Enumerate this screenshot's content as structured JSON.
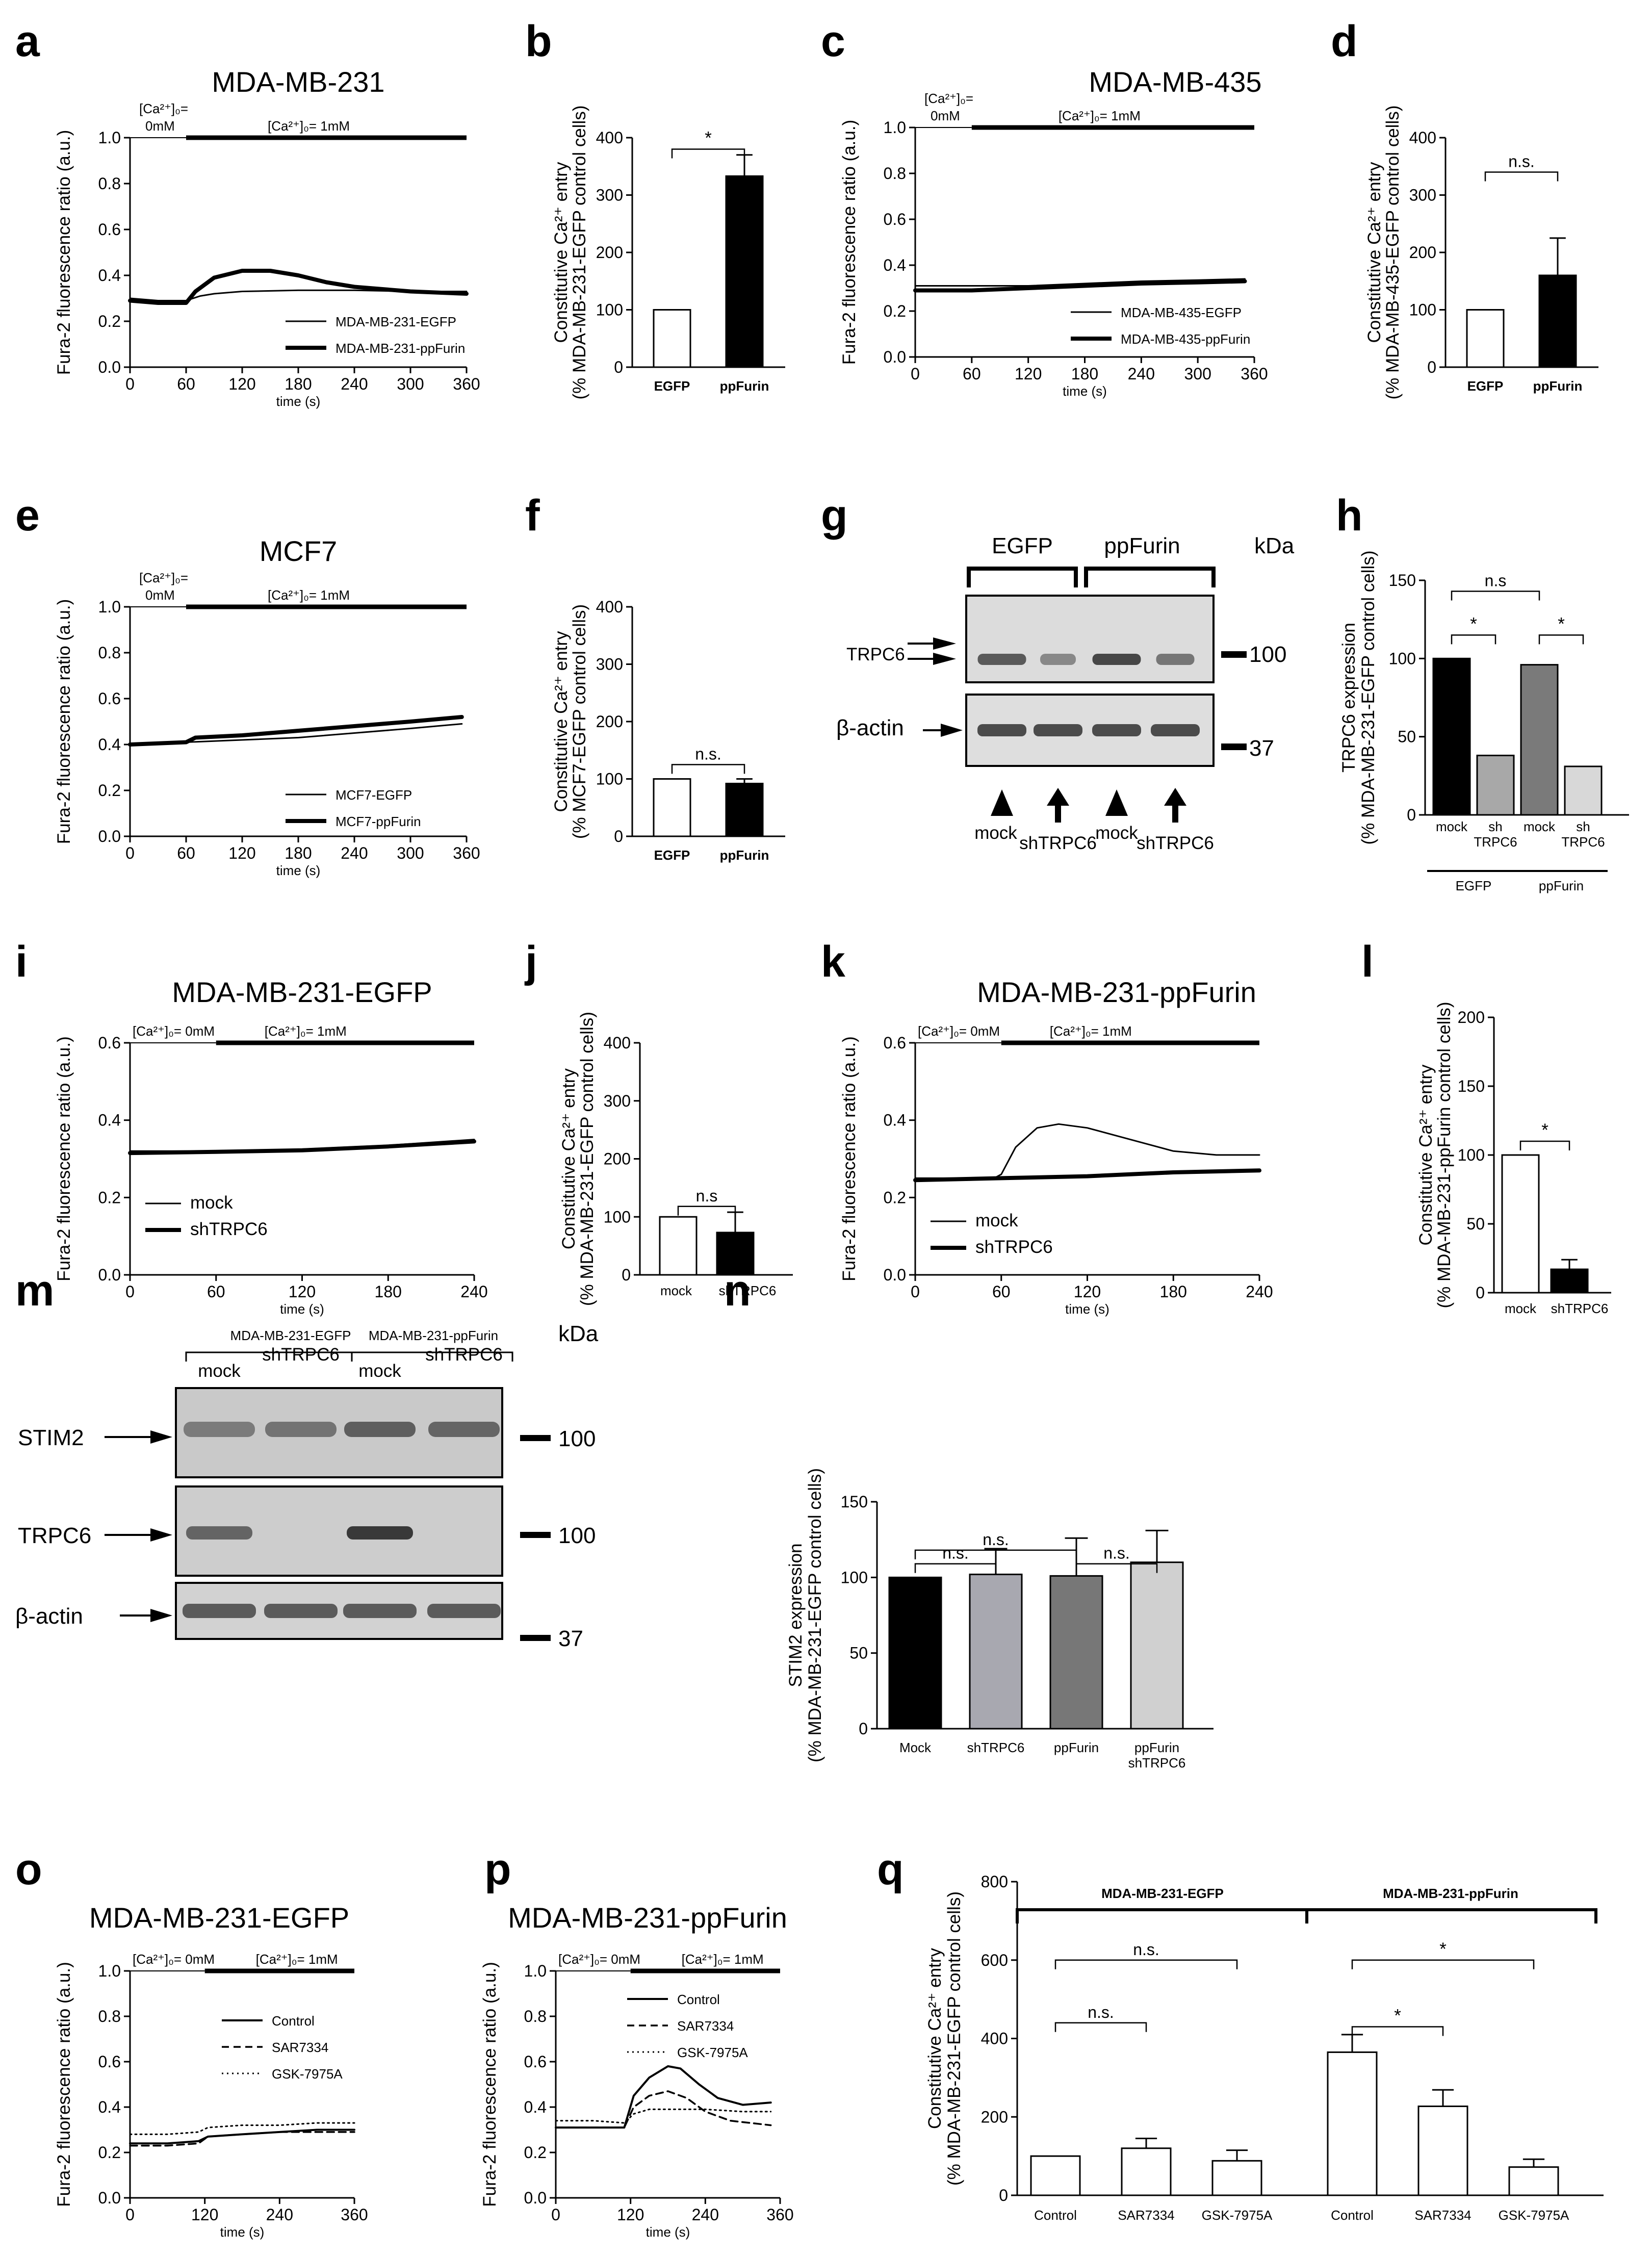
{
  "figure": {
    "panel_letters": [
      "a",
      "b",
      "c",
      "d",
      "e",
      "f",
      "g",
      "h",
      "i",
      "j",
      "k",
      "l",
      "m",
      "n",
      "o",
      "p",
      "q"
    ],
    "common": {
      "fura_ylabel": "Fura-2 fluorescence ratio (a.u.)",
      "time_xlabel": "time (s)",
      "entry_ylabel_line1": "Constitutive Ca²⁺ entry",
      "ca0_label": "[Ca²⁺]₀=",
      "ca0_value": "0mM",
      "ca0_full": "[Ca²⁺]₀= 0mM",
      "ca1_label": "[Ca²⁺]₀= 1mM",
      "kda": "kDa"
    },
    "blots": {
      "g": {
        "groups": [
          "EGFP",
          "ppFurin"
        ],
        "rows": [
          "TRPC6",
          "β-actin"
        ],
        "markers": [
          "100",
          "37"
        ],
        "lanes": [
          "mock",
          "shTRPC6",
          "mock",
          "shTRPC6"
        ]
      },
      "m": {
        "groups": [
          "MDA-MB-231-EGFP",
          "MDA-MB-231-ppFurin"
        ],
        "lanes": [
          "mock",
          "shTRPC6",
          "mock",
          "shTRPC6"
        ],
        "rows": [
          "STIM2",
          "TRPC6",
          "β-actin"
        ],
        "markers": [
          "100",
          "100",
          "37"
        ]
      }
    },
    "h_group_labels": [
      "EGFP",
      "ppFurin"
    ],
    "q_group_labels": [
      "MDA-MB-231-EGFP",
      "MDA-MB-231-ppFurin"
    ]
  },
  "chart_data": [
    {
      "panel": "a",
      "type": "line",
      "title": "MDA-MB-231",
      "xlabel": "time (s)",
      "ylabel": "Fura-2 fluorescence ratio (a.u.)",
      "xlim": [
        0,
        360
      ],
      "ylim": [
        0,
        1.0
      ],
      "xticks": [
        0,
        60,
        120,
        180,
        240,
        300,
        360
      ],
      "yticks": [
        0.0,
        0.2,
        0.4,
        0.6,
        0.8,
        1.0
      ],
      "series": [
        {
          "name": "MDA-MB-231-EGFP",
          "style": "thin",
          "x": [
            0,
            30,
            60,
            75,
            90,
            120,
            180,
            240,
            300,
            360
          ],
          "y": [
            0.3,
            0.29,
            0.29,
            0.31,
            0.32,
            0.33,
            0.335,
            0.335,
            0.33,
            0.33
          ]
        },
        {
          "name": "MDA-MB-231-ppFurin",
          "style": "thick",
          "x": [
            0,
            30,
            60,
            70,
            90,
            120,
            150,
            180,
            210,
            240,
            300,
            360
          ],
          "y": [
            0.29,
            0.28,
            0.28,
            0.33,
            0.39,
            0.42,
            0.42,
            0.4,
            0.37,
            0.35,
            0.33,
            0.32
          ]
        }
      ]
    },
    {
      "panel": "b",
      "type": "bar",
      "ylabel": "(% MDA-MB-231-EGFP control cells)",
      "categories": [
        "EGFP",
        "ppFurin"
      ],
      "values": [
        100,
        333
      ],
      "errors": [
        0,
        37
      ],
      "fills": [
        "white",
        "black"
      ],
      "ylim": [
        0,
        400
      ],
      "yticks": [
        0,
        100,
        200,
        300,
        400
      ],
      "sig": [
        "*"
      ]
    },
    {
      "panel": "c",
      "type": "line",
      "title": "MDA-MB-435",
      "xlabel": "time (s)",
      "ylabel": "Fura-2 fluorescence ratio (a.u.)",
      "xlim": [
        0,
        360
      ],
      "ylim": [
        0,
        1.0
      ],
      "xticks": [
        0,
        60,
        120,
        180,
        240,
        300,
        360
      ],
      "yticks": [
        0.0,
        0.2,
        0.4,
        0.6,
        0.8,
        1.0
      ],
      "series": [
        {
          "name": "MDA-MB-435-EGFP",
          "style": "thin",
          "x": [
            0,
            60,
            120,
            180,
            240,
            300,
            350
          ],
          "y": [
            0.31,
            0.31,
            0.31,
            0.32,
            0.33,
            0.335,
            0.34
          ]
        },
        {
          "name": "MDA-MB-435-ppFurin",
          "style": "thick",
          "x": [
            0,
            60,
            120,
            180,
            240,
            300,
            350
          ],
          "y": [
            0.29,
            0.29,
            0.3,
            0.31,
            0.32,
            0.325,
            0.33
          ]
        }
      ]
    },
    {
      "panel": "d",
      "type": "bar",
      "ylabel": "(% MDA-MB-435-EGFP control cells)",
      "categories": [
        "EGFP",
        "ppFurin"
      ],
      "values": [
        100,
        160
      ],
      "errors": [
        0,
        65
      ],
      "fills": [
        "white",
        "black"
      ],
      "ylim": [
        0,
        400
      ],
      "yticks": [
        0,
        100,
        200,
        300,
        400
      ],
      "sig": [
        "n.s."
      ]
    },
    {
      "panel": "e",
      "type": "line",
      "title": "MCF7",
      "xlabel": "time (s)",
      "ylabel": "Fura-2 fluorescence ratio (a.u.)",
      "xlim": [
        0,
        360
      ],
      "ylim": [
        0,
        1.0
      ],
      "xticks": [
        0,
        60,
        120,
        180,
        240,
        300,
        360
      ],
      "yticks": [
        0.0,
        0.2,
        0.4,
        0.6,
        0.8,
        1.0
      ],
      "series": [
        {
          "name": "MCF7-EGFP",
          "style": "thin",
          "x": [
            0,
            60,
            120,
            180,
            240,
            300,
            355
          ],
          "y": [
            0.4,
            0.41,
            0.42,
            0.43,
            0.45,
            0.47,
            0.49
          ]
        },
        {
          "name": "MCF7-ppFurin",
          "style": "thick",
          "x": [
            0,
            60,
            70,
            120,
            180,
            240,
            300,
            355
          ],
          "y": [
            0.4,
            0.41,
            0.43,
            0.44,
            0.46,
            0.48,
            0.5,
            0.52
          ]
        }
      ]
    },
    {
      "panel": "f",
      "type": "bar",
      "ylabel": "(% MCF7-EGFP control cells)",
      "categories": [
        "EGFP",
        "ppFurin"
      ],
      "values": [
        100,
        92
      ],
      "errors": [
        0,
        8
      ],
      "fills": [
        "white",
        "black"
      ],
      "ylim": [
        0,
        400
      ],
      "yticks": [
        0,
        100,
        200,
        300,
        400
      ],
      "sig": [
        "n.s."
      ]
    },
    {
      "panel": "h",
      "type": "bar",
      "ylabel": "(% MDA-MB-231-EGFP control cells)",
      "ylabel_top": "TRPC6 expression",
      "categories": [
        "mock",
        "sh\nTRPC6",
        "mock",
        "sh\nTRPC6"
      ],
      "values": [
        100,
        38,
        96,
        31
      ],
      "errors": [
        0,
        0,
        0,
        0
      ],
      "fills": [
        "#000000",
        "#a8a8a8",
        "#7a7a7a",
        "#d8d8d8"
      ],
      "ylim": [
        0,
        150
      ],
      "yticks": [
        0,
        50,
        100,
        150
      ],
      "sig": [
        "*",
        "*",
        "n.s"
      ]
    },
    {
      "panel": "i",
      "type": "line",
      "title": "MDA-MB-231-EGFP",
      "xlabel": "time (s)",
      "ylabel": "Fura-2 fluorescence ratio (a.u.)",
      "xlim": [
        0,
        240
      ],
      "ylim": [
        0,
        0.6
      ],
      "xticks": [
        0,
        60,
        120,
        180,
        240
      ],
      "yticks": [
        0.0,
        0.2,
        0.4,
        0.6
      ],
      "series": [
        {
          "name": "mock",
          "style": "thin",
          "x": [
            0,
            60,
            120,
            180,
            240
          ],
          "y": [
            0.32,
            0.32,
            0.325,
            0.335,
            0.35
          ]
        },
        {
          "name": "shTRPC6",
          "style": "thick",
          "x": [
            0,
            60,
            120,
            180,
            240
          ],
          "y": [
            0.315,
            0.318,
            0.322,
            0.332,
            0.345
          ]
        }
      ]
    },
    {
      "panel": "j",
      "type": "bar",
      "ylabel": "(% MDA-MB-231-EGFP control cells)",
      "categories": [
        "mock",
        "shTRPC6"
      ],
      "values": [
        100,
        73
      ],
      "errors": [
        0,
        35
      ],
      "fills": [
        "white",
        "black"
      ],
      "ylim": [
        0,
        400
      ],
      "yticks": [
        0,
        100,
        200,
        300,
        400
      ],
      "sig": [
        "n.s"
      ]
    },
    {
      "panel": "k",
      "type": "line",
      "title": "MDA-MB-231-ppFurin",
      "xlabel": "time (s)",
      "ylabel": "Fura-2 fluorescence ratio (a.u.)",
      "xlim": [
        0,
        240
      ],
      "ylim": [
        0,
        0.6
      ],
      "xticks": [
        0,
        60,
        120,
        180,
        240
      ],
      "yticks": [
        0.0,
        0.2,
        0.4,
        0.6
      ],
      "series": [
        {
          "name": "mock",
          "style": "thin",
          "x": [
            0,
            55,
            60,
            70,
            85,
            100,
            120,
            150,
            180,
            210,
            240
          ],
          "y": [
            0.25,
            0.25,
            0.26,
            0.33,
            0.38,
            0.39,
            0.38,
            0.35,
            0.32,
            0.31,
            0.31
          ]
        },
        {
          "name": "shTRPC6",
          "style": "thick",
          "x": [
            0,
            60,
            120,
            180,
            240
          ],
          "y": [
            0.245,
            0.25,
            0.255,
            0.265,
            0.27
          ]
        }
      ]
    },
    {
      "panel": "l",
      "type": "bar",
      "ylabel": "(% MDA-MB-231-ppFurin control cells)",
      "categories": [
        "mock",
        "shTRPC6"
      ],
      "values": [
        100,
        17
      ],
      "errors": [
        0,
        7
      ],
      "fills": [
        "white",
        "black"
      ],
      "ylim": [
        0,
        200
      ],
      "yticks": [
        0,
        50,
        100,
        150,
        200
      ],
      "sig": [
        "*"
      ]
    },
    {
      "panel": "n",
      "type": "bar",
      "ylabel": "(% MDA-MB-231-EGFP control cells)",
      "ylabel_top": "STIM2  expression",
      "categories": [
        "Mock",
        "shTRPC6",
        "ppFurin",
        "ppFurin\nshTRPC6"
      ],
      "values": [
        100,
        102,
        101,
        110
      ],
      "errors": [
        0,
        17,
        25,
        21
      ],
      "fills": [
        "#000000",
        "#a8a8b0",
        "#777777",
        "#d0d0d0"
      ],
      "ylim": [
        0,
        150
      ],
      "yticks": [
        0,
        50,
        100,
        150
      ],
      "sig": [
        "n.s.",
        "n.s.",
        "n.s."
      ]
    },
    {
      "panel": "o",
      "type": "line",
      "title": "MDA-MB-231-EGFP",
      "xlabel": "time (s)",
      "ylabel": "Fura-2 fluorescence ratio (a.u.)",
      "xlim": [
        0,
        360
      ],
      "ylim": [
        0,
        1.0
      ],
      "xticks": [
        0,
        120,
        240,
        360
      ],
      "yticks": [
        0.0,
        0.2,
        0.4,
        0.6,
        0.8,
        1.0
      ],
      "series": [
        {
          "name": "Control",
          "style": "solid",
          "x": [
            0,
            60,
            110,
            125,
            180,
            240,
            300,
            360
          ],
          "y": [
            0.24,
            0.24,
            0.25,
            0.27,
            0.28,
            0.29,
            0.3,
            0.3
          ]
        },
        {
          "name": "SAR7334",
          "style": "dashed",
          "x": [
            0,
            60,
            110,
            125,
            180,
            240,
            300,
            360
          ],
          "y": [
            0.23,
            0.23,
            0.24,
            0.27,
            0.28,
            0.29,
            0.29,
            0.29
          ]
        },
        {
          "name": "GSK-7975A",
          "style": "dotted",
          "x": [
            0,
            60,
            110,
            125,
            180,
            240,
            300,
            360
          ],
          "y": [
            0.28,
            0.28,
            0.29,
            0.31,
            0.32,
            0.32,
            0.33,
            0.33
          ]
        }
      ]
    },
    {
      "panel": "p",
      "type": "line",
      "title": "MDA-MB-231-ppFurin",
      "xlabel": "time (s)",
      "ylabel": "Fura-2 fluorescence ratio (a.u.)",
      "xlim": [
        0,
        360
      ],
      "ylim": [
        0,
        1.0
      ],
      "xticks": [
        0,
        120,
        240,
        360
      ],
      "yticks": [
        0.0,
        0.2,
        0.4,
        0.6,
        0.8,
        1.0
      ],
      "series": [
        {
          "name": "Control",
          "style": "solid",
          "x": [
            0,
            60,
            110,
            125,
            150,
            180,
            200,
            230,
            260,
            300,
            345
          ],
          "y": [
            0.31,
            0.31,
            0.31,
            0.45,
            0.53,
            0.58,
            0.57,
            0.5,
            0.44,
            0.41,
            0.42
          ]
        },
        {
          "name": "SAR7334",
          "style": "dashed",
          "x": [
            0,
            60,
            110,
            125,
            150,
            180,
            210,
            240,
            280,
            345
          ],
          "y": [
            0.31,
            0.31,
            0.31,
            0.4,
            0.45,
            0.47,
            0.44,
            0.38,
            0.34,
            0.32
          ]
        },
        {
          "name": "GSK-7975A",
          "style": "dotted",
          "x": [
            0,
            60,
            110,
            125,
            150,
            180,
            240,
            300,
            345
          ],
          "y": [
            0.34,
            0.34,
            0.33,
            0.37,
            0.39,
            0.39,
            0.39,
            0.38,
            0.38
          ]
        }
      ]
    },
    {
      "panel": "q",
      "type": "bar",
      "ylabel": "(% MDA-MB-231-EGFP control cells)",
      "categories": [
        "Control",
        "SAR7334",
        "GSK-7975A",
        "Control",
        "SAR7334",
        "GSK-7975A"
      ],
      "values": [
        100,
        120,
        88,
        365,
        227,
        72
      ],
      "errors": [
        0,
        25,
        27,
        45,
        42,
        20
      ],
      "fills": [
        "white",
        "white",
        "white",
        "white",
        "white",
        "white"
      ],
      "ylim": [
        0,
        800
      ],
      "yticks": [
        0,
        200,
        400,
        600,
        800
      ],
      "sig": [
        "n.s.",
        "n.s.",
        "*",
        "*"
      ]
    }
  ]
}
